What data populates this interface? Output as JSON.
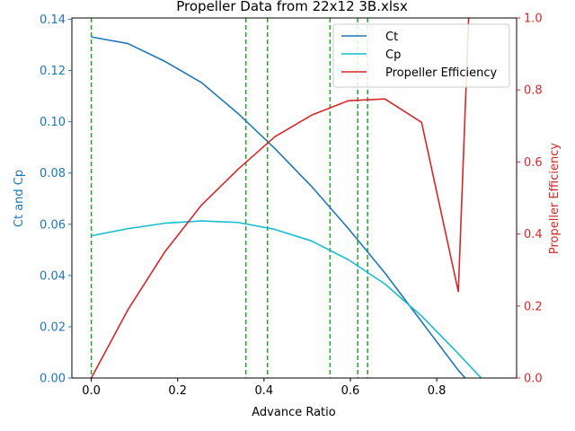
{
  "chart_data": {
    "type": "line",
    "title": "Propeller Data from 22x12 3B.xlsx",
    "xlabel": "Advance Ratio",
    "ylabel_left": "Ct and Cp",
    "ylabel_right": "Propeller Efficiency",
    "xlim": [
      -0.045,
      0.985
    ],
    "ylim_left": [
      0.0,
      0.1405
    ],
    "ylim_right": [
      0.0,
      1.0
    ],
    "xticks": [
      0.0,
      0.2,
      0.4,
      0.6,
      0.8
    ],
    "xtick_labels": [
      "0.0",
      "0.2",
      "0.4",
      "0.6",
      "0.8"
    ],
    "yticks_left": [
      0.0,
      0.02,
      0.04,
      0.06,
      0.08,
      0.1,
      0.12,
      0.14
    ],
    "ytick_labels_left": [
      "0.00",
      "0.02",
      "0.04",
      "0.06",
      "0.08",
      "0.10",
      "0.12",
      "0.14"
    ],
    "yticks_right": [
      0.0,
      0.2,
      0.4,
      0.6,
      0.8,
      1.0
    ],
    "ytick_labels_right": [
      "0.0",
      "0.2",
      "0.4",
      "0.6",
      "0.8",
      "1.0"
    ],
    "left_axis_color": "#1f77b4",
    "right_axis_color": "#d62728",
    "legend_position": "top-right",
    "vlines": {
      "x": [
        0.0,
        0.358,
        0.408,
        0.553,
        0.617,
        0.64
      ],
      "color": "#2ca02c",
      "style": "dashed"
    },
    "series": [
      {
        "name": "Ct",
        "axis": "left",
        "color": "#1f77b4",
        "x": [
          0.0,
          0.085,
          0.17,
          0.255,
          0.34,
          0.425,
          0.51,
          0.595,
          0.68,
          0.765,
          0.85,
          0.866
        ],
        "y": [
          0.1331,
          0.1305,
          0.1236,
          0.1153,
          0.1032,
          0.0896,
          0.0748,
          0.0584,
          0.041,
          0.022,
          0.003,
          0.0
        ]
      },
      {
        "name": "Cp",
        "axis": "left",
        "color": "#17becf",
        "x": [
          0.0,
          0.085,
          0.17,
          0.255,
          0.34,
          0.425,
          0.51,
          0.595,
          0.68,
          0.765,
          0.85,
          0.903
        ],
        "y": [
          0.0555,
          0.0583,
          0.0604,
          0.0613,
          0.0607,
          0.058,
          0.0535,
          0.0462,
          0.0367,
          0.0242,
          0.0095,
          0.0
        ]
      },
      {
        "name": "Propeller Efficiency",
        "axis": "right",
        "color": "#d62728",
        "x": [
          0.0,
          0.085,
          0.17,
          0.255,
          0.34,
          0.425,
          0.51,
          0.595,
          0.68,
          0.765,
          0.85,
          0.874
        ],
        "y": [
          0.0,
          0.19,
          0.35,
          0.48,
          0.58,
          0.67,
          0.73,
          0.77,
          0.775,
          0.71,
          0.24,
          1.0
        ]
      }
    ]
  }
}
